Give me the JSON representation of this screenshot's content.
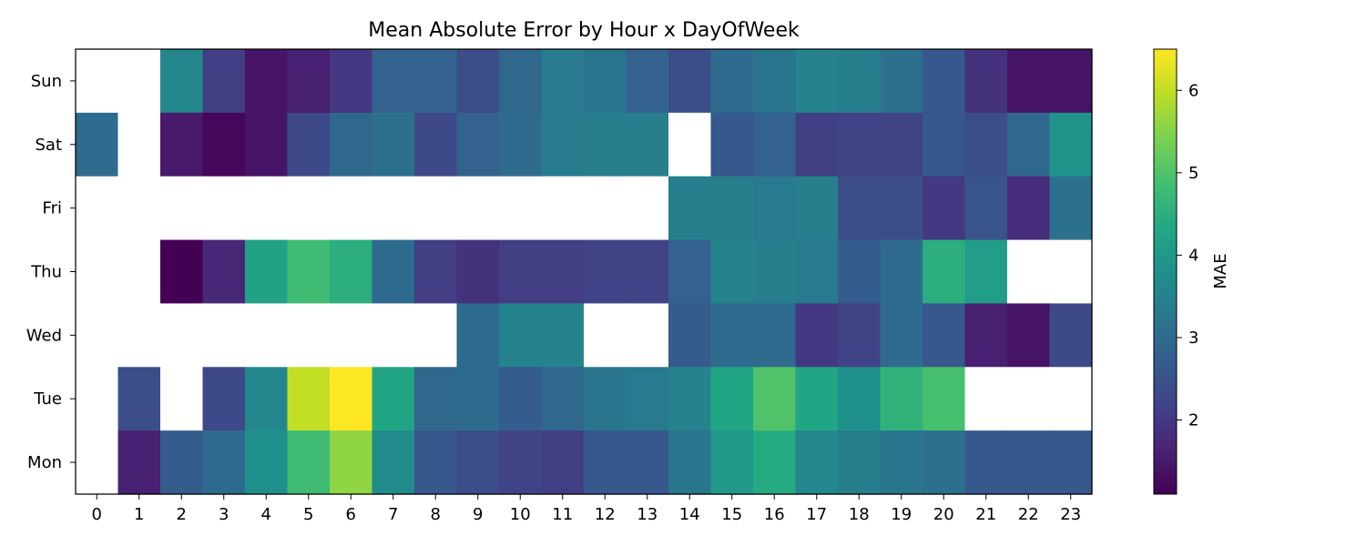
{
  "chart_data": {
    "type": "heatmap",
    "title": "Mean Absolute Error by Hour x DayOfWeek",
    "xlabel": "",
    "ylabel": "",
    "x_categories": [
      "0",
      "1",
      "2",
      "3",
      "4",
      "5",
      "6",
      "7",
      "8",
      "9",
      "10",
      "11",
      "12",
      "13",
      "14",
      "15",
      "16",
      "17",
      "18",
      "19",
      "20",
      "21",
      "22",
      "23"
    ],
    "y_categories": [
      "Sun",
      "Sat",
      "Fri",
      "Thu",
      "Wed",
      "Tue",
      "Mon"
    ],
    "values": [
      [
        null,
        null,
        3.6,
        2.1,
        1.4,
        1.6,
        2.0,
        2.8,
        2.8,
        2.4,
        2.9,
        3.3,
        3.2,
        2.8,
        2.4,
        3.0,
        3.2,
        3.5,
        3.4,
        3.1,
        2.6,
        1.9,
        1.4,
        1.4
      ],
      [
        3.0,
        null,
        1.5,
        1.2,
        1.4,
        2.3,
        2.9,
        3.1,
        2.3,
        2.8,
        3.0,
        3.3,
        3.4,
        3.4,
        null,
        2.6,
        2.8,
        2.1,
        2.2,
        2.2,
        2.6,
        2.4,
        2.9,
        3.9
      ],
      [
        null,
        null,
        null,
        null,
        null,
        null,
        null,
        null,
        null,
        null,
        null,
        null,
        null,
        null,
        3.4,
        3.4,
        3.3,
        3.4,
        2.4,
        2.4,
        2.0,
        2.5,
        1.8,
        3.1
      ],
      [
        null,
        null,
        1.1,
        1.7,
        4.2,
        4.8,
        4.5,
        3.0,
        2.1,
        1.9,
        2.1,
        2.1,
        2.2,
        2.2,
        2.8,
        3.5,
        3.4,
        3.3,
        2.7,
        3.0,
        4.5,
        4.1,
        null,
        null
      ],
      [
        null,
        null,
        null,
        null,
        null,
        null,
        null,
        null,
        null,
        3.0,
        3.5,
        3.5,
        null,
        null,
        2.7,
        3.0,
        3.0,
        2.0,
        2.2,
        3.0,
        2.6,
        1.6,
        1.4,
        2.3
      ],
      [
        null,
        2.4,
        null,
        2.3,
        3.6,
        6.0,
        6.5,
        4.3,
        2.9,
        3.0,
        2.7,
        2.9,
        3.2,
        3.3,
        3.5,
        4.3,
        5.0,
        4.3,
        3.8,
        4.6,
        4.9,
        null,
        null,
        null
      ],
      [
        null,
        1.6,
        2.7,
        3.0,
        3.8,
        4.8,
        5.6,
        3.7,
        2.6,
        2.4,
        2.2,
        2.1,
        2.6,
        2.6,
        3.2,
        4.0,
        4.4,
        3.6,
        3.4,
        3.2,
        3.1,
        2.6,
        2.6,
        2.6
      ]
    ],
    "colormap": "viridis",
    "colorbar": {
      "label": "MAE",
      "vmin": 1.1,
      "vmax": 6.5,
      "ticks": [
        2,
        3,
        4,
        5,
        6
      ]
    },
    "missing_color": "#ffffff"
  }
}
